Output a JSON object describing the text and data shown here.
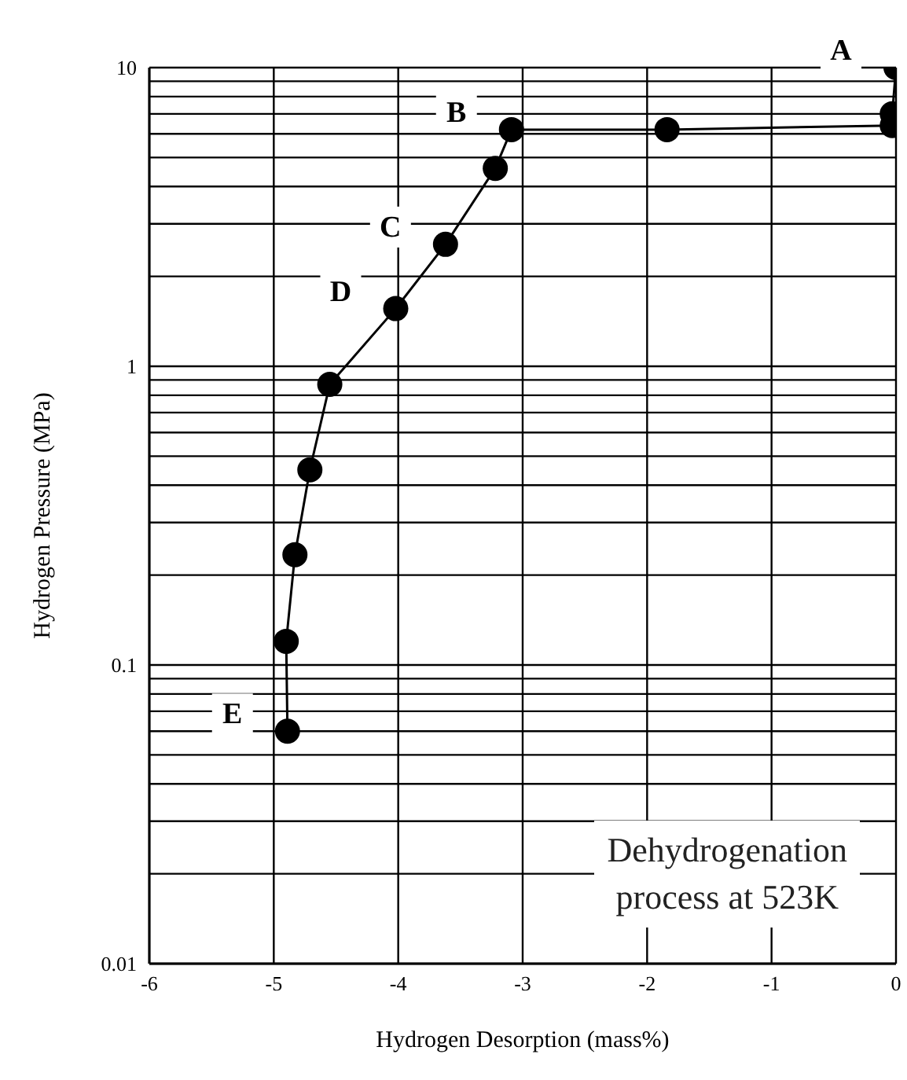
{
  "chart_data": {
    "type": "line",
    "xlabel": "Hydrogen Desorption (mass%)",
    "ylabel": "Hydrogen Pressure (MPa)",
    "x": [
      0,
      -0.03,
      -0.03,
      -1.84,
      -3.09,
      -3.22,
      -3.62,
      -4.02,
      -4.55,
      -4.71,
      -4.83,
      -4.9,
      -4.89
    ],
    "series": [
      {
        "color": "#000000",
        "values": [
          10,
          7.0,
          6.4,
          6.2,
          6.2,
          4.6,
          2.56,
          1.56,
          0.87,
          0.45,
          0.234,
          0.12,
          0.06
        ]
      }
    ],
    "marker": "circle",
    "line_style": "solid",
    "log": "y",
    "grid": true,
    "xlim": [
      -6,
      0
    ],
    "xticks": [
      -6,
      -5,
      -4,
      -3,
      -2,
      -1,
      0
    ],
    "ylim": [
      0.01,
      10
    ],
    "yticks": [
      0.01,
      {
        "value": 0.02,
        "label": null
      },
      {
        "value": 0.03,
        "label": null
      },
      {
        "value": 0.04,
        "label": null
      },
      {
        "value": 0.05,
        "label": null
      },
      {
        "value": 0.06,
        "label": null
      },
      {
        "value": 0.07,
        "label": null
      },
      {
        "value": 0.08,
        "label": null
      },
      {
        "value": 0.09,
        "label": null
      },
      0.1,
      {
        "value": 0.2,
        "label": null
      },
      {
        "value": 0.3,
        "label": null
      },
      {
        "value": 0.4,
        "label": null
      },
      {
        "value": 0.5,
        "label": null
      },
      {
        "value": 0.6,
        "label": null
      },
      {
        "value": 0.7,
        "label": null
      },
      {
        "value": 0.8,
        "label": null
      },
      {
        "value": 0.9,
        "label": null
      },
      1,
      {
        "value": 2,
        "label": null
      },
      {
        "value": 3,
        "label": null
      },
      {
        "value": 4,
        "label": null
      },
      {
        "value": 5,
        "label": null
      },
      {
        "value": 6,
        "label": null
      },
      {
        "value": 7,
        "label": null
      },
      {
        "value": 8,
        "label": null
      },
      {
        "value": 9,
        "label": null
      },
      10
    ],
    "annotations": [
      {
        "text": "A",
        "x": 0,
        "y": 10
      },
      {
        "text": "B",
        "x": -3.09,
        "y": 6.2
      },
      {
        "text": "C",
        "x": -3.62,
        "y": 2.56
      },
      {
        "text": "D",
        "x": -4.02,
        "y": 1.56
      },
      {
        "text": "E",
        "x": -4.89,
        "y": 0.06
      },
      "Dehydrogenation\nprocess at 523K"
    ]
  }
}
